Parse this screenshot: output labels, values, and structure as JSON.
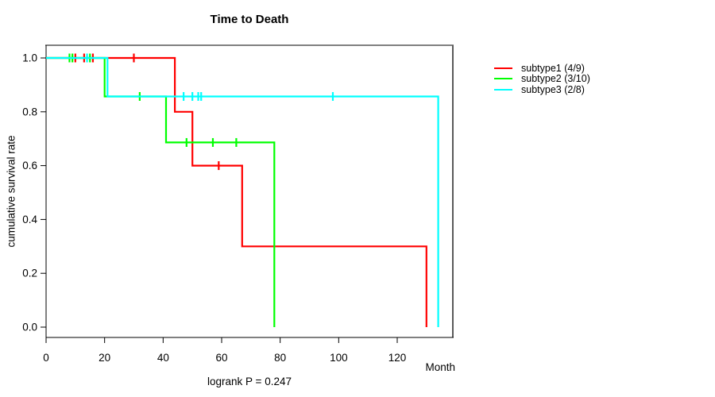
{
  "title": "Time to Death",
  "ylabel": "cumulative survival rate",
  "xlabel": "Month",
  "footer": "logrank P = 0.247",
  "legend": [
    {
      "label": "subtype1 (4/9)",
      "color": "#ff0000"
    },
    {
      "label": "subtype2 (3/10)",
      "color": "#00ff00"
    },
    {
      "label": "subtype3 (2/8)",
      "color": "#00ffff"
    }
  ],
  "chart_data": {
    "type": "line",
    "subtype": "kaplan-meier-step",
    "title": "Time to Death",
    "xlabel": "Month",
    "ylabel": "cumulative survival rate",
    "annotation": "logrank P = 0.247",
    "xlim": [
      0,
      139
    ],
    "ylim": [
      0,
      1
    ],
    "xticks": [
      0,
      20,
      40,
      60,
      80,
      100,
      120
    ],
    "yticks": [
      0.0,
      0.2,
      0.4,
      0.6,
      0.8,
      1.0
    ],
    "grid": false,
    "legend_position": "right-outside",
    "series": [
      {
        "name": "subtype1 (4/9)",
        "color": "#ff0000",
        "events": 4,
        "n": 9,
        "points": [
          [
            0,
            1.0
          ],
          [
            44,
            1.0
          ],
          [
            44,
            0.8
          ],
          [
            50,
            0.8
          ],
          [
            50,
            0.6
          ],
          [
            67,
            0.6
          ],
          [
            67,
            0.3
          ],
          [
            130,
            0.3
          ],
          [
            130,
            0.0
          ]
        ],
        "censor_marks": [
          [
            10,
            1.0
          ],
          [
            13,
            1.0
          ],
          [
            16,
            1.0
          ],
          [
            30,
            1.0
          ],
          [
            59,
            0.6
          ]
        ]
      },
      {
        "name": "subtype2 (3/10)",
        "color": "#00ff00",
        "events": 3,
        "n": 10,
        "points": [
          [
            0,
            1.0
          ],
          [
            20,
            1.0
          ],
          [
            20,
            0.857
          ],
          [
            41,
            0.857
          ],
          [
            41,
            0.686
          ],
          [
            78,
            0.686
          ],
          [
            78,
            0.0
          ]
        ],
        "censor_marks": [
          [
            8,
            1.0
          ],
          [
            9,
            1.0
          ],
          [
            15,
            1.0
          ],
          [
            32,
            0.857
          ],
          [
            48,
            0.686
          ],
          [
            57,
            0.686
          ],
          [
            65,
            0.686
          ]
        ]
      },
      {
        "name": "subtype3 (2/8)",
        "color": "#00ffff",
        "events": 2,
        "n": 8,
        "points": [
          [
            0,
            1.0
          ],
          [
            21,
            1.0
          ],
          [
            21,
            0.857
          ],
          [
            134,
            0.857
          ],
          [
            134,
            0.0
          ]
        ],
        "censor_marks": [
          [
            14,
            1.0
          ],
          [
            47,
            0.857
          ],
          [
            50,
            0.857
          ],
          [
            52,
            0.857
          ],
          [
            53,
            0.857
          ],
          [
            98,
            0.857
          ]
        ]
      }
    ]
  }
}
